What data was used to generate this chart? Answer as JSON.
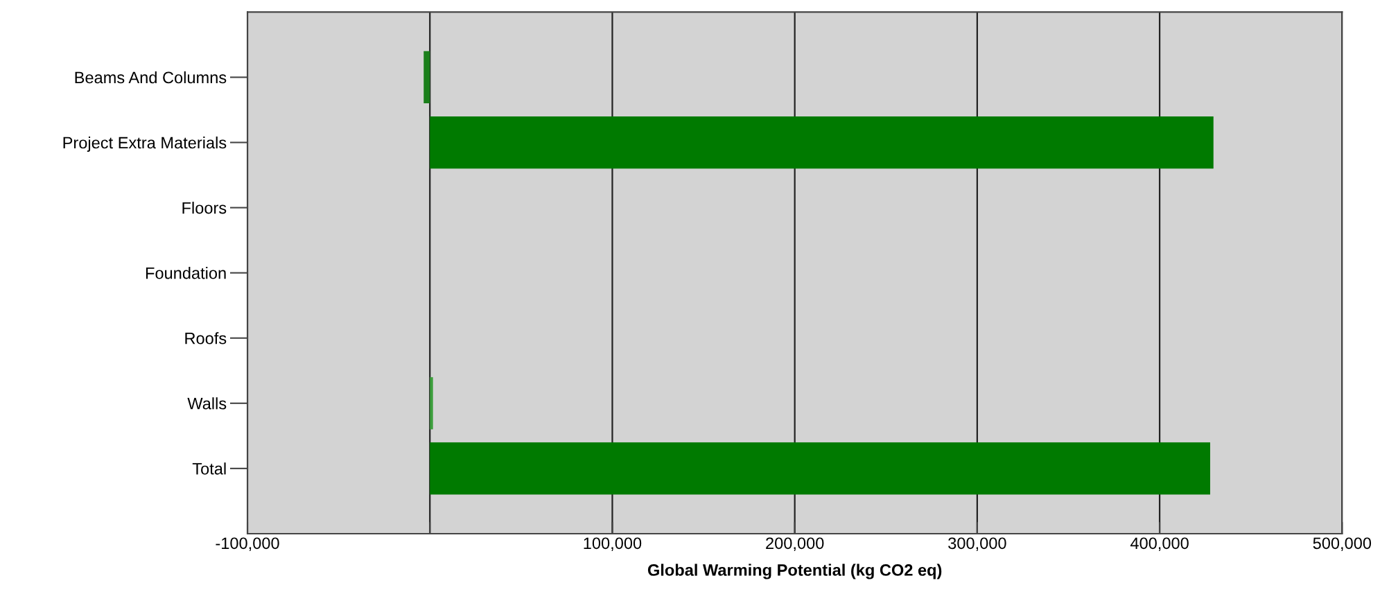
{
  "chart_data": {
    "type": "bar",
    "orientation": "horizontal",
    "xlabel": "Global Warming Potential (kg CO2 eq)",
    "categories": [
      "Beams And Columns",
      "Project Extra Materials",
      "Floors",
      "Foundation",
      "Roofs",
      "Walls",
      "Total"
    ],
    "values": [
      -3400,
      429500,
      0,
      0,
      0,
      1700,
      427700
    ],
    "colors": [
      "#1a7f1a",
      "#007a00",
      "#007a00",
      "#007a00",
      "#007a00",
      "#3c9e3c",
      "#007a00"
    ],
    "xlim": [
      -100000,
      500000
    ],
    "xticks": [
      {
        "value": -100000,
        "label": "-100,000"
      },
      {
        "value": 0,
        "label": null
      },
      {
        "value": 100000,
        "label": "100,000"
      },
      {
        "value": 200000,
        "label": "200,000"
      },
      {
        "value": 300000,
        "label": "300,000"
      },
      {
        "value": 400000,
        "label": "400,000"
      },
      {
        "value": 500000,
        "label": "500,000"
      }
    ],
    "grid": "x"
  }
}
